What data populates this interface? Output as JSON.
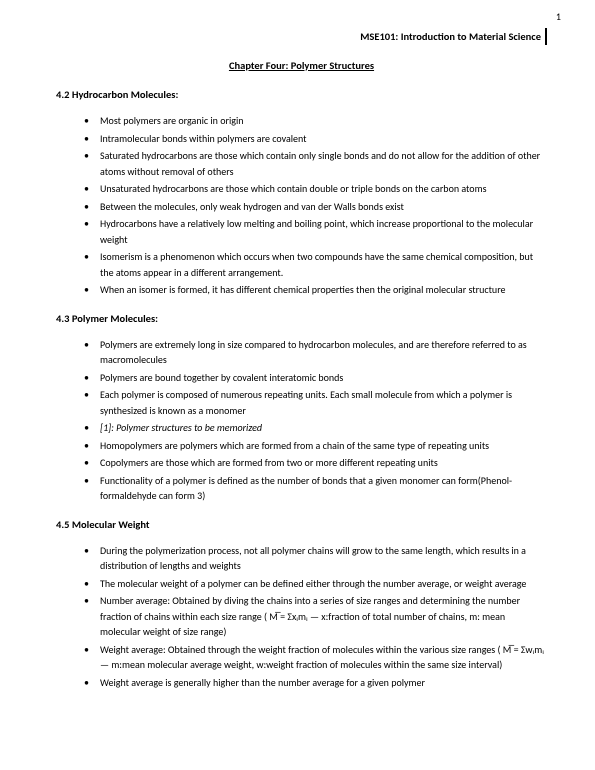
{
  "page_number": "1",
  "course_header": "MSE101: Introduction to Material Science",
  "chapter_title": "Chapter Four: Polymer Structures",
  "sections": [
    {
      "heading": "4.2 Hydrocarbon Molecules:",
      "bullets": [
        "Most polymers are organic in origin",
        "Intramolecular bonds within polymers are covalent",
        "Saturated hydrocarbons are those which contain only single bonds and do not allow for the addition of other atoms without removal of others",
        "Unsaturated hydrocarbons are those which contain double or triple bonds on the carbon atoms",
        "Between the molecules, only weak hydrogen and van der Walls bonds exist",
        "Hydrocarbons have a relatively low melting and boiling point, which increase proportional to the molecular weight",
        "Isomerism is a phenomenon which occurs when two compounds have the same chemical composition, but the atoms appear in a different arrangement.",
        "When an isomer is formed, it has different chemical properties then the original molecular structure"
      ]
    },
    {
      "heading": "4.3 Polymer Molecules:",
      "bullets": [
        "Polymers are extremely long in size compared to hydrocarbon molecules, and are therefore referred to as macromolecules",
        "Polymers are bound together by covalent interatomic bonds",
        "Each polymer is composed of numerous repeating units. Each small molecule from which a polymer is synthesized is known as a monomer",
        {
          "text": "[1]: Polymer structures to be memorized",
          "italic": true
        },
        "Homopolymers are polymers which are formed from a chain of the same type of repeating units",
        "Copolymers are those which are formed from two or more different repeating units",
        "Functionality of a polymer is defined as the number of bonds that a given monomer can form(Phenol-formaldehyde can form 3)"
      ]
    },
    {
      "heading": "4.5 Molecular Weight",
      "bullets": [
        "During the polymerization process, not all polymer chains will grow to the same length, which results in a distribution of lengths and weights",
        "The molecular weight of a polymer can be defined either through the number average, or weight average",
        "Number average: Obtained by diving the chains into a series of size ranges and determining the number fraction of chains within each size range ( M̅ = Σxᵢmᵢ — x:fraction of total number of chains, m: mean molecular weight of size range)",
        "Weight average: Obtained through the weight fraction of molecules within the various size ranges ( M̅ = Σwᵢmᵢ — m:mean molecular average weight, w:weight fraction of molecules within the same size interval)",
        "Weight average is generally higher than the number average for a given polymer"
      ]
    }
  ]
}
